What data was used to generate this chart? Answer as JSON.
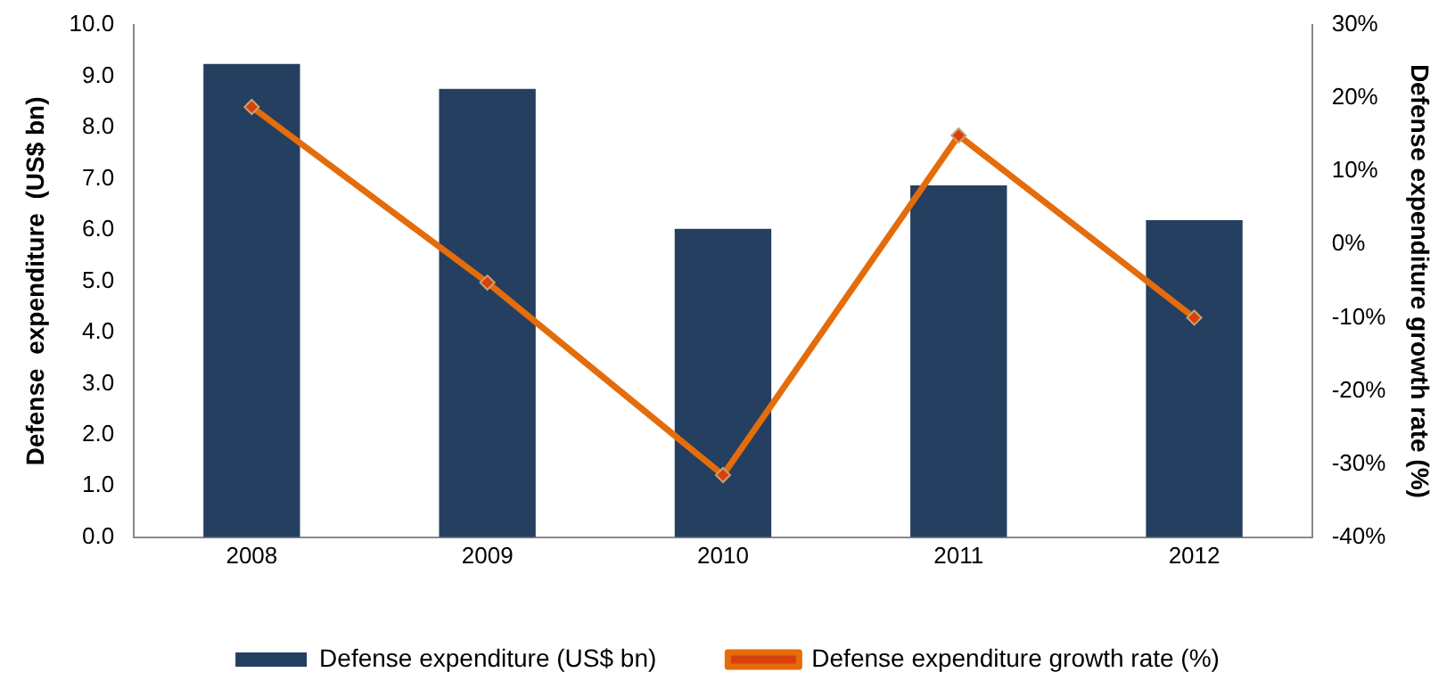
{
  "chart_data": {
    "type": "bar",
    "categories": [
      "2008",
      "2009",
      "2010",
      "2011",
      "2012"
    ],
    "ylabel": "Defense  expenditure  (US$ bn)",
    "y2label": "Defense expenditure growth rate (%)",
    "series": [
      {
        "name": "Defense expenditure (US$ bn)",
        "color": "#243f60",
        "values": [
          9.24,
          8.75,
          6.02,
          6.87,
          6.19
        ]
      },
      {
        "name": "Defense expenditure growth rate (%)",
        "type": "line",
        "axis": "y2",
        "color": "#e46c0a",
        "marker": "diamond",
        "values": [
          18.8,
          -5.2,
          -31.5,
          14.9,
          -10.0
        ]
      }
    ],
    "ylim": [
      0,
      10
    ],
    "yticks": [
      {
        "value": 0,
        "label": "0.0"
      },
      {
        "value": 1,
        "label": "1.0"
      },
      {
        "value": 2,
        "label": "2.0"
      },
      {
        "value": 3,
        "label": "3.0"
      },
      {
        "value": 4,
        "label": "4.0"
      },
      {
        "value": 5,
        "label": "5.0"
      },
      {
        "value": 6,
        "label": "6.0"
      },
      {
        "value": 7,
        "label": "7.0"
      },
      {
        "value": 8,
        "label": "8.0"
      },
      {
        "value": 9,
        "label": "9.0"
      },
      {
        "value": 10,
        "label": "10.0"
      }
    ],
    "y2lim": [
      -40,
      30
    ],
    "y2ticks": [
      {
        "value": -40,
        "label": "-40%"
      },
      {
        "value": -30,
        "label": "-30%"
      },
      {
        "value": -20,
        "label": "-20%"
      },
      {
        "value": -10,
        "label": "-10%"
      },
      {
        "value": 0,
        "label": "0%"
      },
      {
        "value": 10,
        "label": "10%"
      },
      {
        "value": 20,
        "label": "20%"
      },
      {
        "value": 30,
        "label": "30%"
      }
    ],
    "grid": false,
    "legend": "bottom"
  }
}
